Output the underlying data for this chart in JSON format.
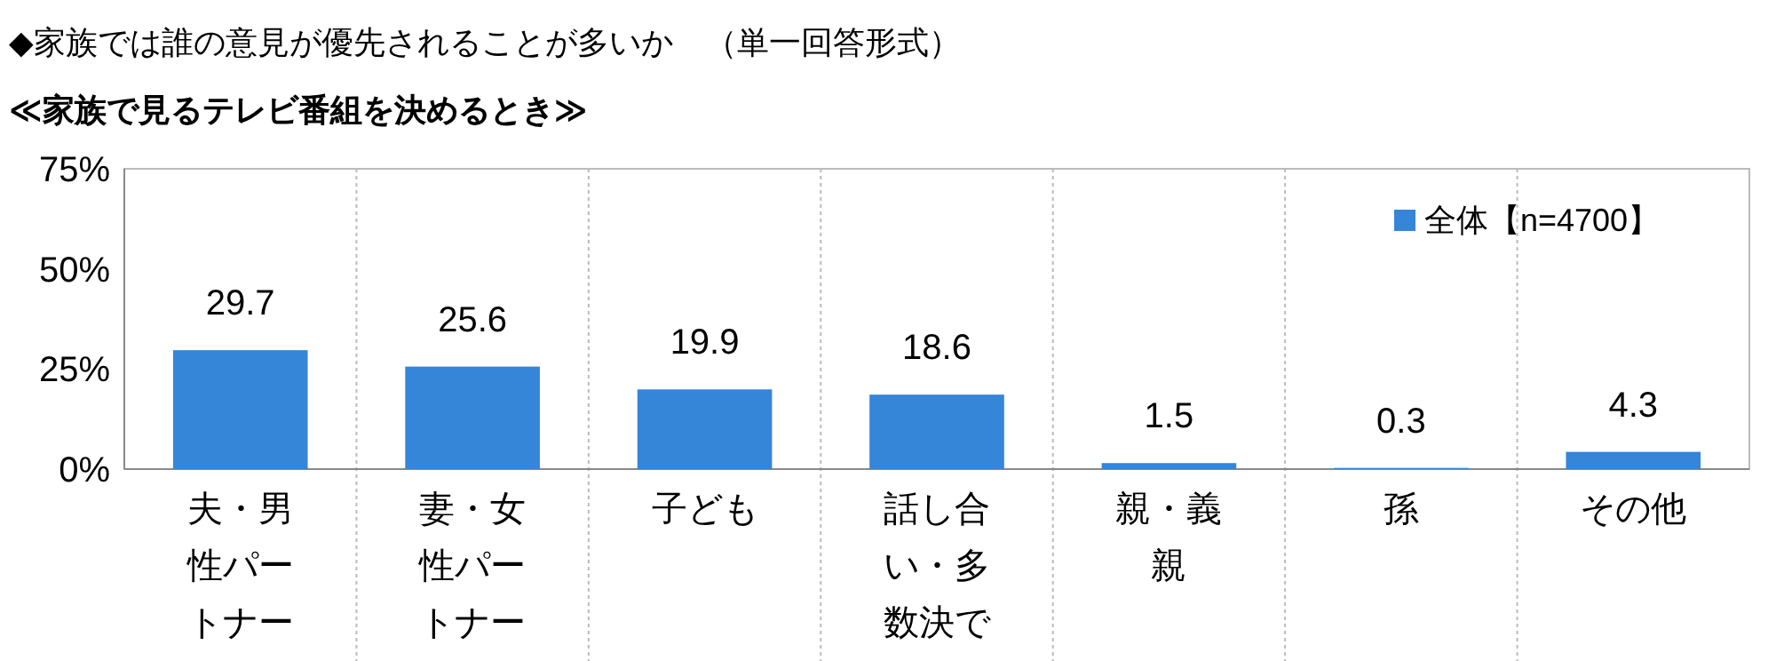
{
  "chart_data": {
    "type": "bar",
    "title": "◆家族では誰の意見が優先されることが多いか　（単一回答形式）",
    "subtitle": "≪家族で見るテレビ番組を決めるとき≫",
    "categories": [
      "夫・男性パートナー",
      "妻・女性パートナー",
      "子ども",
      "話し合い・多数決で決めている",
      "親・義親",
      "孫",
      "その他"
    ],
    "series": [
      {
        "name": "全体【n=4700】",
        "color": "#3585d8",
        "values": [
          29.7,
          25.6,
          19.9,
          18.6,
          1.5,
          0.3,
          4.3
        ]
      }
    ],
    "ylim": [
      0,
      75
    ],
    "yticks": [
      {
        "value": 0,
        "label": "0%"
      },
      {
        "value": 25,
        "label": "25%"
      },
      {
        "value": 50,
        "label": "50%"
      },
      {
        "value": 75,
        "label": "75%"
      }
    ],
    "grid": "x",
    "legend": "top right",
    "data_labels": true
  }
}
